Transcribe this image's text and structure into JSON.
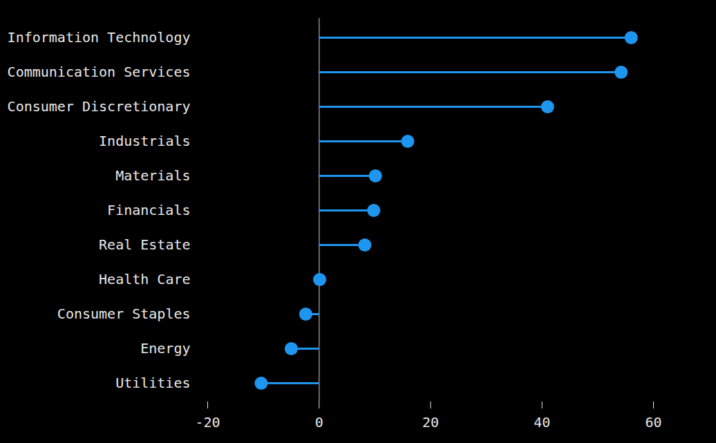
{
  "chart_data": {
    "type": "lollipop",
    "orientation": "horizontal",
    "categories": [
      "Information Technology",
      "Communication Services",
      "Consumer Discretionary",
      "Industrials",
      "Materials",
      "Financials",
      "Real Estate",
      "Health Care",
      "Consumer Staples",
      "Energy",
      "Utilities"
    ],
    "values": [
      56.0,
      54.2,
      41.0,
      15.9,
      10.1,
      9.8,
      8.2,
      0.1,
      -2.4,
      -5.0,
      -10.4
    ],
    "color": "#1e96f0",
    "xlim": [
      -20,
      60
    ],
    "xticks": [
      -20,
      0,
      20,
      40,
      60
    ],
    "grid": false
  }
}
